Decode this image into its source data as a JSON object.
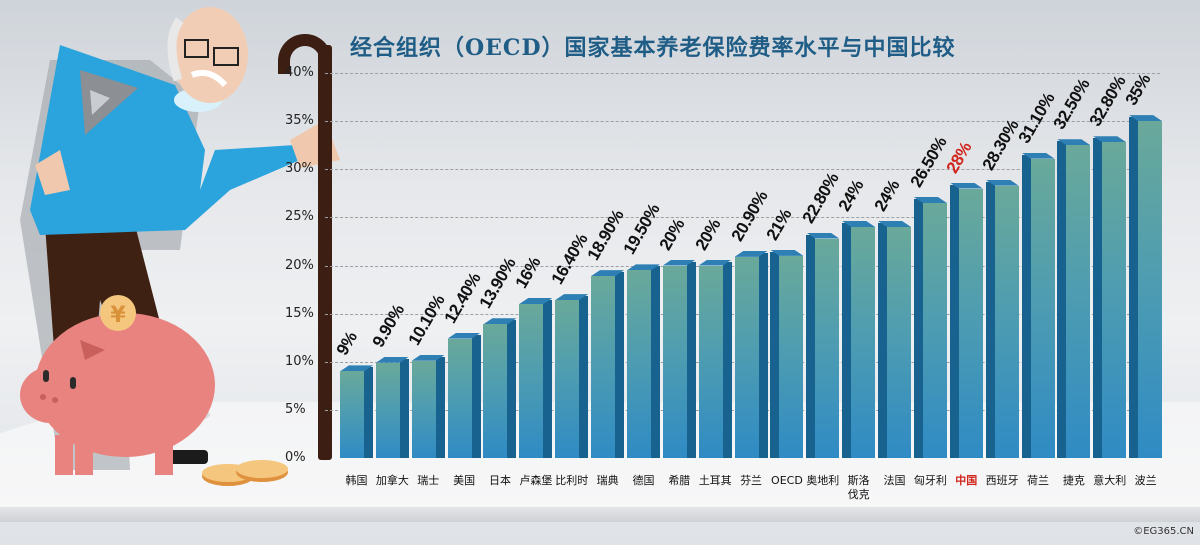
{
  "title": "经合组织（OECD）国家基本养老保险费率水平与中国比较",
  "watermark": "©EG365.CN",
  "colors": {
    "title": "#1f5d86",
    "bar_front_top": "#6aa99a",
    "bar_front_bottom": "#2f8bc4",
    "bar_side": "#17628e",
    "highlight": "#d0261c"
  },
  "y_ticks": [
    "0%",
    "5%",
    "10%",
    "15%",
    "20%",
    "25%",
    "30%",
    "35%",
    "40%"
  ],
  "bars": [
    {
      "label": "韩国",
      "value_label": "9%"
    },
    {
      "label": "加拿大",
      "value_label": "9.90%"
    },
    {
      "label": "瑞士",
      "value_label": "10.10%"
    },
    {
      "label": "美国",
      "value_label": "12.40%"
    },
    {
      "label": "日本",
      "value_label": "13.90%"
    },
    {
      "label": "卢森堡",
      "value_label": "16%"
    },
    {
      "label": "比利时",
      "value_label": "16.40%"
    },
    {
      "label": "瑞典",
      "value_label": "18.90%"
    },
    {
      "label": "德国",
      "value_label": "19.50%"
    },
    {
      "label": "希腊",
      "value_label": "20%"
    },
    {
      "label": "土耳其",
      "value_label": "20%"
    },
    {
      "label": "芬兰",
      "value_label": "20.90%"
    },
    {
      "label": "OECD",
      "value_label": "21%"
    },
    {
      "label": "奥地利",
      "value_label": "22.80%"
    },
    {
      "label": "斯洛伐克",
      "value_label": "24%"
    },
    {
      "label": "法国",
      "value_label": "24%"
    },
    {
      "label": "匈牙利",
      "value_label": "26.50%"
    },
    {
      "label": "中国",
      "value_label": "28%"
    },
    {
      "label": "西班牙",
      "value_label": "28.30%"
    },
    {
      "label": "荷兰",
      "value_label": "31.10%"
    },
    {
      "label": "捷克",
      "value_label": "32.50%"
    },
    {
      "label": "意大利",
      "value_label": "32.80%"
    },
    {
      "label": "波兰",
      "value_label": "35%"
    }
  ],
  "chart_data": {
    "type": "bar",
    "title": "经合组织（OECD）国家基本养老保险费率水平与中国比较",
    "xlabel": "",
    "ylabel": "",
    "ylim": [
      0,
      40
    ],
    "y_ticks": [
      0,
      5,
      10,
      15,
      20,
      25,
      30,
      35,
      40
    ],
    "y_tick_format": "percent",
    "grid": true,
    "legend": null,
    "highlight": "中国",
    "categories": [
      "韩国",
      "加拿大",
      "瑞士",
      "美国",
      "日本",
      "卢森堡",
      "比利时",
      "瑞典",
      "德国",
      "希腊",
      "土耳其",
      "芬兰",
      "OECD",
      "奥地利",
      "斯洛伐克",
      "法国",
      "匈牙利",
      "中国",
      "西班牙",
      "荷兰",
      "捷克",
      "意大利",
      "波兰"
    ],
    "values": [
      9,
      9.9,
      10.1,
      12.4,
      13.9,
      16,
      16.4,
      18.9,
      19.5,
      20,
      20,
      20.9,
      21,
      22.8,
      24,
      24,
      26.5,
      28,
      28.3,
      31.1,
      32.5,
      32.8,
      35
    ]
  }
}
